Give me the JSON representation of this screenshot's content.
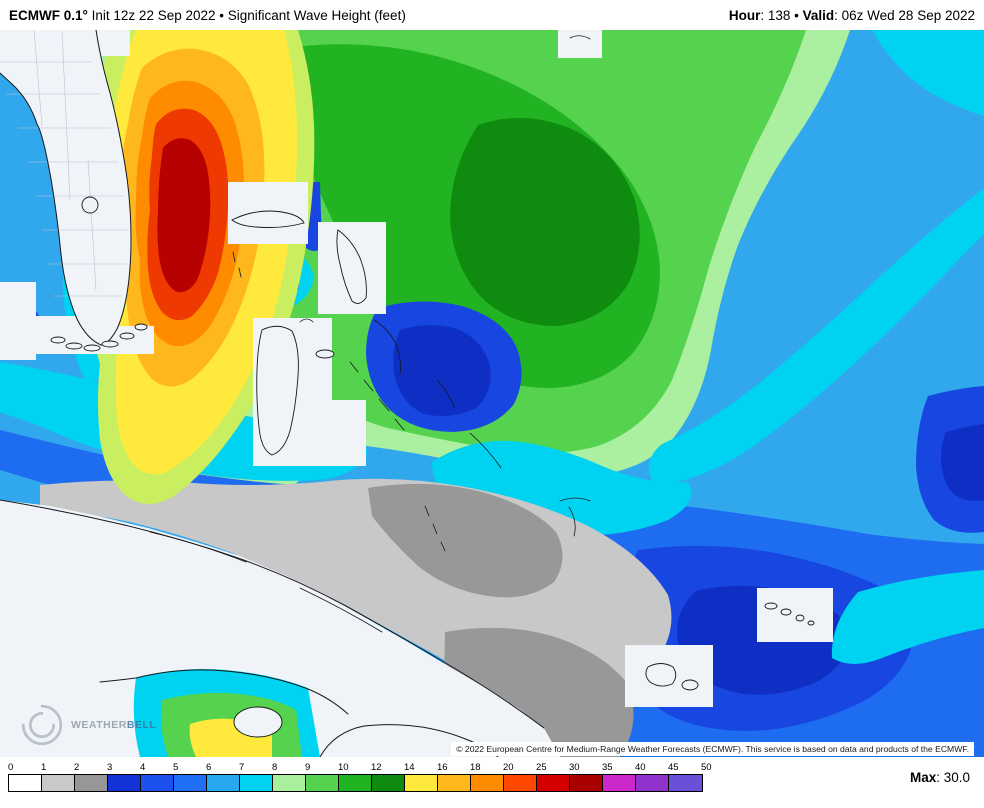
{
  "header": {
    "model": "ECMWF 0.1°",
    "title_rest": " Init 12z 22 Sep 2022 • Significant Wave Height (feet)",
    "hour_label": "Hour",
    "hour_rest": ": 138 • ",
    "valid_label": "Valid",
    "valid_rest": ": 06z Wed 28 Sep 2022"
  },
  "map": {
    "attribution": "© 2022 European Centre for Medium-Range Weather Forecasts (ECMWF). This service is based on data and products of the ECMWF.",
    "logo": {
      "part1": "WEATHER",
      "part2": "BELL"
    }
  },
  "colorbar": {
    "unit": "feet",
    "labels": [
      "0",
      "1",
      "2",
      "3",
      "4",
      "5",
      "6",
      "7",
      "8",
      "9",
      "10",
      "12",
      "14",
      "16",
      "18",
      "20",
      "25",
      "30",
      "35",
      "40",
      "45",
      "50"
    ],
    "colors": [
      "#ffffff",
      "#c9c9c9",
      "#979797",
      "#1333d6",
      "#1b52ee",
      "#1f6ff7",
      "#28a8f0",
      "#00d3f2",
      "#a9ef9c",
      "#55d34f",
      "#22b322",
      "#0f8c0f",
      "#ffe93c",
      "#ffb71e",
      "#ff8c00",
      "#ff4700",
      "#d40000",
      "#a80000",
      "#cc29cc",
      "#8f33cc",
      "#6a4fd9"
    ]
  },
  "max": {
    "label": "Max",
    "rest": ": 30.0"
  }
}
